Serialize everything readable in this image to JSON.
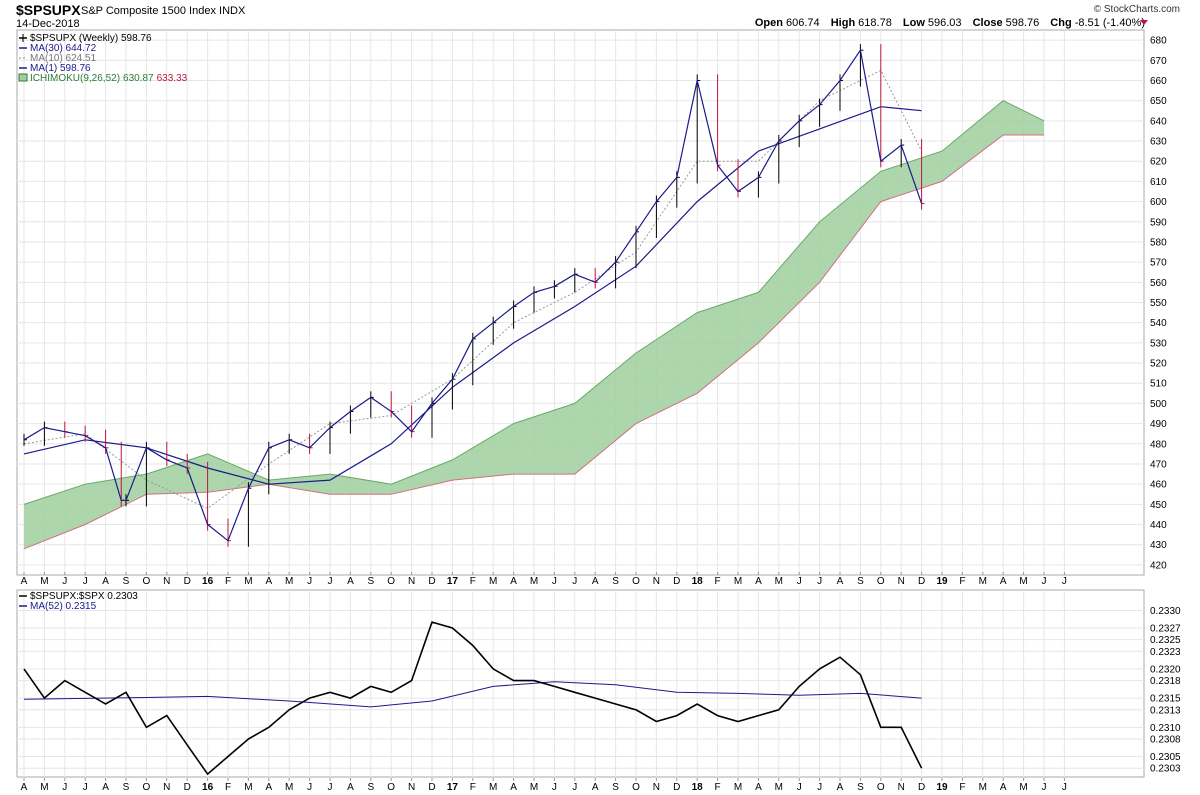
{
  "header": {
    "symbol": "$SPSUPX",
    "name": "S&P Composite 1500 Index",
    "exchange": "INDX",
    "date": "14-Dec-2018",
    "watermark": "© StockCharts.com",
    "open_label": "Open",
    "open": "606.74",
    "high_label": "High",
    "high": "618.78",
    "low_label": "Low",
    "low": "596.03",
    "close_label": "Close",
    "close": "598.76",
    "chg_label": "Chg",
    "chg": "-8.51 (-1.40%)"
  },
  "legend_main": [
    {
      "text": "$SPSUPX (Weekly) 598.76",
      "color": "#000000",
      "style": "bar"
    },
    {
      "text": "MA(30) 644.72",
      "color": "#1a1a8c",
      "style": "line",
      "value_color": "#1a1a8c"
    },
    {
      "text": "MA(10) 624.51",
      "color": "#888888",
      "style": "dotted"
    },
    {
      "text": "MA(1) 598.76",
      "color": "#1a1a8c",
      "style": "line"
    },
    {
      "text": "ICHIMOKU(9,26,52)",
      "v1": "630.87",
      "v2": "633.33",
      "color": "#2e7d32",
      "style": "box"
    }
  ],
  "legend_lower": [
    {
      "text": "$SPSUPX:$SPX 0.2303",
      "color": "#000000"
    },
    {
      "text": "MA(52) 0.2315",
      "color": "#1a1a8c"
    }
  ],
  "colors": {
    "price": "#000000",
    "down_bar": "#c0143c",
    "ma30": "#1a1a8c",
    "ma10": "#999999",
    "ma1": "#1a1a8c",
    "cloud_bull": "#9fcf9f",
    "cloud_bear": "#f2b5bd",
    "span_a": "#6aa86a",
    "span_b": "#d07080",
    "ratio": "#000000",
    "ratio_ma": "#1a1a8c",
    "grid": "#e6e6e6"
  },
  "x_labels": [
    "A",
    "M",
    "J",
    "J",
    "A",
    "S",
    "O",
    "N",
    "D",
    "16",
    "F",
    "M",
    "A",
    "M",
    "J",
    "J",
    "A",
    "S",
    "O",
    "N",
    "D",
    "17",
    "F",
    "M",
    "A",
    "M",
    "J",
    "J",
    "A",
    "S",
    "O",
    "N",
    "D",
    "18",
    "F",
    "M",
    "A",
    "M",
    "J",
    "J",
    "A",
    "S",
    "O",
    "N",
    "D",
    "19",
    "F",
    "M",
    "A",
    "M",
    "J",
    "J"
  ],
  "chart_data": [
    {
      "type": "line",
      "title": "$SPSUPX S&P Composite 1500 Index INDX",
      "ylim": [
        415,
        685
      ],
      "y_ticks": [
        420,
        430,
        440,
        450,
        460,
        470,
        480,
        490,
        500,
        510,
        520,
        530,
        540,
        550,
        560,
        570,
        580,
        590,
        600,
        610,
        620,
        630,
        640,
        650,
        660,
        670,
        680
      ],
      "grid": true,
      "series": [
        {
          "name": "$SPSUPX (Weekly)",
          "x": [
            "2015-04",
            "2015-05",
            "2015-06",
            "2015-07",
            "2015-08",
            "2015-08-24",
            "2015-09",
            "2015-10",
            "2015-11",
            "2015-12",
            "2016-01",
            "2016-02",
            "2016-03",
            "2016-04",
            "2016-05",
            "2016-06",
            "2016-07",
            "2016-08",
            "2016-09",
            "2016-10",
            "2016-11",
            "2016-12",
            "2017-01",
            "2017-02",
            "2017-03",
            "2017-04",
            "2017-05",
            "2017-06",
            "2017-07",
            "2017-08",
            "2017-09",
            "2017-10",
            "2017-11",
            "2017-12",
            "2018-01",
            "2018-02",
            "2018-03",
            "2018-04",
            "2018-05",
            "2018-06",
            "2018-07",
            "2018-08",
            "2018-09",
            "2018-10",
            "2018-11",
            "2018-12"
          ],
          "values": [
            482,
            488,
            486,
            484,
            478,
            452,
            452,
            478,
            472,
            468,
            440,
            432,
            458,
            478,
            482,
            478,
            488,
            496,
            503,
            496,
            486,
            500,
            512,
            532,
            540,
            548,
            555,
            558,
            564,
            560,
            570,
            585,
            600,
            612,
            660,
            618,
            605,
            612,
            630,
            640,
            648,
            660,
            675,
            620,
            628,
            599
          ]
        },
        {
          "name": "MA(30)",
          "x": [
            "2015-04",
            "2015-07",
            "2015-10",
            "2016-01",
            "2016-04",
            "2016-07",
            "2016-10",
            "2017-01",
            "2017-04",
            "2017-07",
            "2017-10",
            "2018-01",
            "2018-04",
            "2018-07",
            "2018-10",
            "2018-12"
          ],
          "values": [
            475,
            482,
            478,
            468,
            460,
            462,
            480,
            508,
            530,
            548,
            568,
            600,
            625,
            636,
            647,
            645
          ]
        },
        {
          "name": "MA(10)",
          "x": [
            "2015-04",
            "2015-07",
            "2015-10",
            "2016-01",
            "2016-04",
            "2016-07",
            "2016-10",
            "2017-01",
            "2017-04",
            "2017-07",
            "2017-10",
            "2018-01",
            "2018-04",
            "2018-07",
            "2018-10",
            "2018-12"
          ],
          "values": [
            480,
            485,
            462,
            448,
            470,
            490,
            494,
            512,
            540,
            555,
            575,
            620,
            620,
            650,
            665,
            625
          ]
        },
        {
          "name": "Ichimoku Span A",
          "x": [
            "2015-04",
            "2015-07",
            "2015-10",
            "2016-01",
            "2016-04",
            "2016-07",
            "2016-10",
            "2017-01",
            "2017-04",
            "2017-07",
            "2017-10",
            "2018-01",
            "2018-04",
            "2018-07",
            "2018-10",
            "2019-01",
            "2019-04",
            "2019-06"
          ],
          "values": [
            450,
            460,
            465,
            475,
            462,
            465,
            460,
            472,
            490,
            500,
            525,
            545,
            555,
            590,
            615,
            625,
            650,
            640
          ]
        },
        {
          "name": "Ichimoku Span B",
          "x": [
            "2015-04",
            "2015-07",
            "2015-10",
            "2016-01",
            "2016-04",
            "2016-07",
            "2016-10",
            "2017-01",
            "2017-04",
            "2017-07",
            "2017-10",
            "2018-01",
            "2018-04",
            "2018-07",
            "2018-10",
            "2019-01",
            "2019-04",
            "2019-06"
          ],
          "values": [
            428,
            440,
            455,
            456,
            460,
            455,
            455,
            462,
            465,
            465,
            490,
            505,
            530,
            560,
            600,
            610,
            633,
            633
          ]
        }
      ]
    },
    {
      "type": "line",
      "title": "$SPSUPX:$SPX",
      "ylim": [
        0.23015,
        0.23335
      ],
      "y_ticks": [
        "0.2303",
        "0.2305",
        "0.2308",
        "0.2310",
        "0.2313",
        "0.2315",
        "0.2318",
        "0.2320",
        "0.2323",
        "0.2325",
        "0.2327",
        "0.2330"
      ],
      "series": [
        {
          "name": "$SPSUPX:$SPX",
          "x": [
            "2015-04",
            "2015-05",
            "2015-06",
            "2015-07",
            "2015-08",
            "2015-09",
            "2015-10",
            "2015-11",
            "2015-12",
            "2016-01",
            "2016-02",
            "2016-03",
            "2016-04",
            "2016-05",
            "2016-06",
            "2016-07",
            "2016-08",
            "2016-09",
            "2016-10",
            "2016-11",
            "2016-12",
            "2017-01",
            "2017-02",
            "2017-03",
            "2017-04",
            "2017-05",
            "2017-06",
            "2017-07",
            "2017-08",
            "2017-09",
            "2017-10",
            "2017-11",
            "2017-12",
            "2018-01",
            "2018-02",
            "2018-03",
            "2018-04",
            "2018-05",
            "2018-06",
            "2018-07",
            "2018-08",
            "2018-09",
            "2018-10",
            "2018-11",
            "2018-12"
          ],
          "values": [
            0.232,
            0.2315,
            0.2318,
            0.2316,
            0.2314,
            0.2316,
            0.231,
            0.2312,
            0.2307,
            0.2302,
            0.2305,
            0.2308,
            0.231,
            0.2313,
            0.2315,
            0.2316,
            0.2315,
            0.2317,
            0.2316,
            0.2318,
            0.2328,
            0.2327,
            0.2324,
            0.232,
            0.2318,
            0.2318,
            0.2317,
            0.2316,
            0.2315,
            0.2314,
            0.2313,
            0.2311,
            0.2312,
            0.2314,
            0.2312,
            0.2311,
            0.2312,
            0.2313,
            0.2317,
            0.232,
            0.2322,
            0.2319,
            0.231,
            0.231,
            0.2303
          ]
        },
        {
          "name": "MA(52)",
          "x": [
            "2015-04",
            "2015-10",
            "2016-01",
            "2016-05",
            "2016-09",
            "2016-12",
            "2017-03",
            "2017-06",
            "2017-09",
            "2017-12",
            "2018-03",
            "2018-06",
            "2018-09",
            "2018-12"
          ],
          "values": [
            0.23148,
            0.23151,
            0.23153,
            0.23145,
            0.23135,
            0.23145,
            0.2317,
            0.23178,
            0.23173,
            0.2316,
            0.23158,
            0.23155,
            0.23158,
            0.2315
          ]
        }
      ]
    }
  ]
}
